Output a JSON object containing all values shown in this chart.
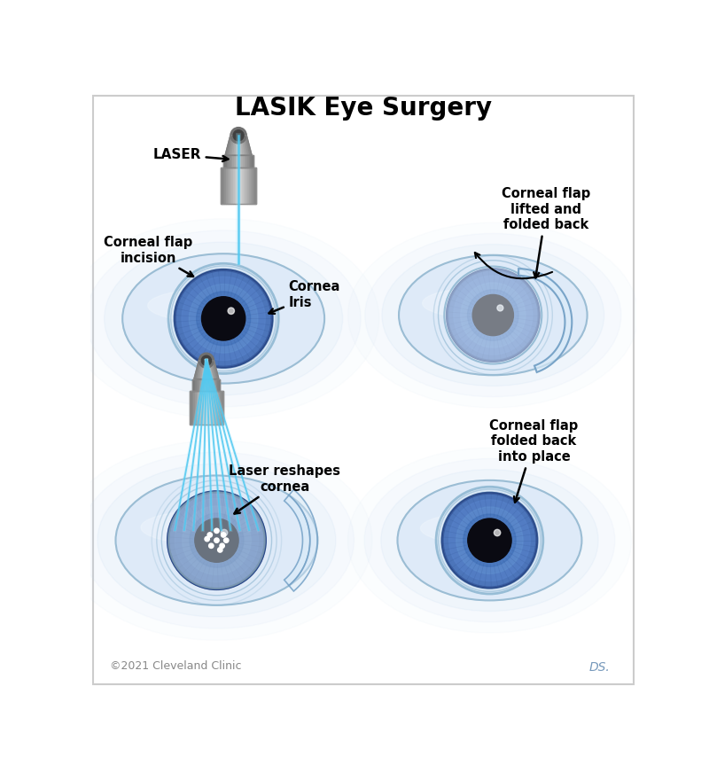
{
  "title": "LASIK Eye Surgery",
  "title_fontsize": 20,
  "title_fontweight": "bold",
  "bg_color": "#ffffff",
  "copyright": "©2021 Cleveland Clinic",
  "copyright_color": "#888888",
  "labels": {
    "laser": "LASER",
    "corneal_flap_incision": "Corneal flap\nincision",
    "cornea_iris": "Cornea\nIris",
    "corneal_flap_lifted": "Corneal flap\nlifted and\nfolded back",
    "laser_reshapes": "Laser reshapes\ncornea",
    "corneal_flap_back": "Corneal flap\nfolded back\ninto place"
  },
  "eyeball_white": "#deeaf8",
  "eyeball_edge": "#9bbdd4",
  "iris_outer": "#4a72b8",
  "iris_mid": "#6090d0",
  "iris_inner": "#3560a8",
  "iris_dark_ring": "#2a4888",
  "pupil_color": "#0a0a12",
  "cornea_color": "#c8ddf0",
  "cornea_edge": "#7aaac8",
  "sclera_highlight": "#eef5fc",
  "glow_color": "#c8ddf5",
  "laser_top": "#d0d0d0",
  "laser_mid": "#a8a8a8",
  "laser_dark": "#888888",
  "laser_beam": "#50c8f0",
  "white_dots": "#ffffff",
  "flap_fill": "#d8eaf8",
  "flap_edge": "#6898c0"
}
